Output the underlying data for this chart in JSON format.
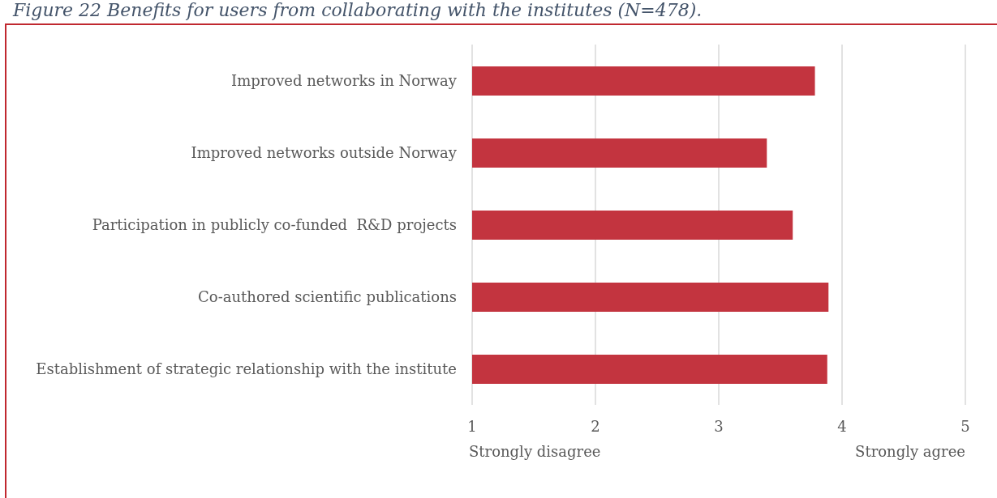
{
  "chart_data": {
    "type": "bar",
    "orientation": "horizontal",
    "title": "Figure 22 Benefits for users from collaborating with the institutes (N=478).",
    "categories": [
      "Improved networks in Norway",
      "Improved networks outside Norway",
      "Participation in publicly co-funded  R&D projects",
      "Co-authored scientific publications",
      "Establishment of strategic relationship with the institute"
    ],
    "values": [
      3.78,
      3.39,
      3.6,
      3.89,
      3.88
    ],
    "color": "#c3343f",
    "xlim": [
      1,
      5
    ],
    "xticks": [
      1,
      2,
      3,
      4,
      5
    ],
    "grid": "x",
    "annotations": [
      "Strongly disagree",
      "Strongly agree"
    ]
  }
}
